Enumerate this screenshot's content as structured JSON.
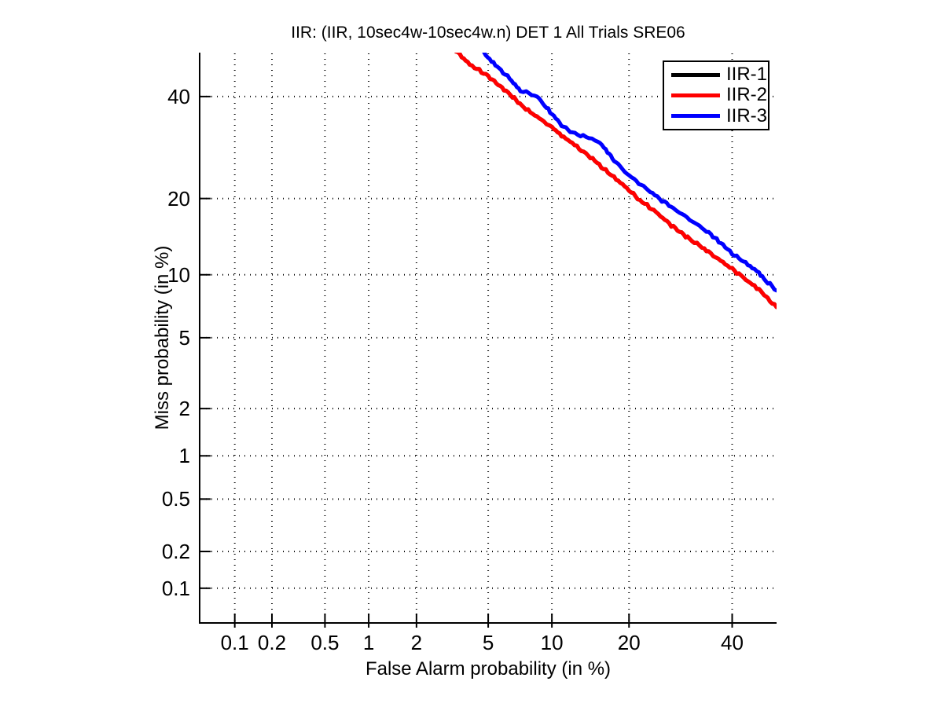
{
  "figure": {
    "background": "#ffffff",
    "axis_color": "#000000"
  },
  "chart_data": {
    "type": "line",
    "subtype": "DET curve (normal-deviate / probit scale on both axes)",
    "title": "IIR: (IIR, 10sec4w-10sec4w.n) DET 1 All Trials SRE06",
    "xlabel": "False Alarm probability (in %)",
    "ylabel": "Miss probability (in %)",
    "xlim": [
      0.05,
      50
    ],
    "ylim": [
      0.05,
      50
    ],
    "xticks": [
      0.1,
      0.2,
      0.5,
      1,
      2,
      5,
      10,
      20,
      40
    ],
    "yticks": [
      0.1,
      0.2,
      0.5,
      1,
      2,
      5,
      10,
      20,
      40
    ],
    "xtick_labels": [
      "0.1",
      "0.2",
      "0.5",
      "1",
      "2",
      "5",
      "10",
      "20",
      "40"
    ],
    "ytick_labels": [
      "0.1",
      "0.2",
      "0.5",
      "1",
      "2",
      "5",
      "10",
      "20",
      "40"
    ],
    "grid": "dotted, black, at labeled ticks only",
    "box": "left and bottom axes only (no top/right border)",
    "legend": {
      "position": "top-right",
      "entries": [
        {
          "label": "IIR-1",
          "color": "#000000"
        },
        {
          "label": "IIR-2",
          "color": "#ff0000"
        },
        {
          "label": "IIR-3",
          "color": "#0000ff"
        }
      ]
    },
    "series": [
      {
        "name": "IIR-1",
        "color": "#000000",
        "note": "coincident with IIR-2 and completely hidden beneath it",
        "points": [
          [
            3.1,
            52.5
          ],
          [
            3.45,
            50
          ],
          [
            4.0,
            47.3
          ],
          [
            4.5,
            45.9
          ],
          [
            5.0,
            44.6
          ],
          [
            5.5,
            43.0
          ],
          [
            6.0,
            41.6
          ],
          [
            6.6,
            40.0
          ],
          [
            7.3,
            38.0
          ],
          [
            8.0,
            36.6
          ],
          [
            9.0,
            34.9
          ],
          [
            10,
            33.4
          ],
          [
            11,
            31.6
          ],
          [
            12.2,
            30.1
          ],
          [
            13,
            29.0
          ],
          [
            14.7,
            27.0
          ],
          [
            16.5,
            24.8
          ],
          [
            18,
            23.3
          ],
          [
            20,
            21.4
          ],
          [
            21.4,
            20.0
          ],
          [
            23,
            18.9
          ],
          [
            25,
            17.6
          ],
          [
            27,
            16.2
          ],
          [
            29,
            15.1
          ],
          [
            31,
            14.1
          ],
          [
            33.5,
            13.1
          ],
          [
            35.4,
            12.3
          ],
          [
            37.5,
            11.5
          ],
          [
            40,
            10.6
          ],
          [
            42,
            9.9
          ],
          [
            44,
            9.2
          ],
          [
            46,
            8.6
          ],
          [
            48,
            7.8
          ],
          [
            50,
            7.1
          ]
        ]
      },
      {
        "name": "IIR-2",
        "color": "#ff0000",
        "points": [
          [
            3.1,
            52.5
          ],
          [
            3.45,
            50
          ],
          [
            4.0,
            47.3
          ],
          [
            4.5,
            45.9
          ],
          [
            5.0,
            44.6
          ],
          [
            5.5,
            43.0
          ],
          [
            6.0,
            41.6
          ],
          [
            6.6,
            40.0
          ],
          [
            7.3,
            38.0
          ],
          [
            8.0,
            36.6
          ],
          [
            9.0,
            34.9
          ],
          [
            10,
            33.4
          ],
          [
            11,
            31.6
          ],
          [
            12.2,
            30.1
          ],
          [
            13,
            29.0
          ],
          [
            14.7,
            27.0
          ],
          [
            16.5,
            24.8
          ],
          [
            18,
            23.3
          ],
          [
            20,
            21.4
          ],
          [
            21.4,
            20.0
          ],
          [
            23,
            18.9
          ],
          [
            25,
            17.6
          ],
          [
            27,
            16.2
          ],
          [
            29,
            15.1
          ],
          [
            31,
            14.1
          ],
          [
            33.5,
            13.1
          ],
          [
            35.4,
            12.3
          ],
          [
            37.5,
            11.5
          ],
          [
            40,
            10.6
          ],
          [
            42,
            9.9
          ],
          [
            44,
            9.2
          ],
          [
            46,
            8.6
          ],
          [
            48,
            7.8
          ],
          [
            50,
            7.1
          ]
        ]
      },
      {
        "name": "IIR-3",
        "color": "#0000ff",
        "points": [
          [
            4.4,
            52.5
          ],
          [
            4.75,
            50
          ],
          [
            5.2,
            48.0
          ],
          [
            5.8,
            46.0
          ],
          [
            6.4,
            44.0
          ],
          [
            7.2,
            41.3
          ],
          [
            7.9,
            40.7
          ],
          [
            8.6,
            40.0
          ],
          [
            9.3,
            38.0
          ],
          [
            10,
            36.2
          ],
          [
            11,
            33.8
          ],
          [
            12.2,
            32.2
          ],
          [
            13.5,
            31.5
          ],
          [
            15.4,
            30.5
          ],
          [
            16.5,
            28.8
          ],
          [
            17.7,
            26.7
          ],
          [
            20,
            23.9
          ],
          [
            22,
            22.3
          ],
          [
            25.2,
            20.0
          ],
          [
            27,
            18.9
          ],
          [
            29,
            17.8
          ],
          [
            31,
            16.8
          ],
          [
            33.5,
            15.6
          ],
          [
            35.4,
            14.7
          ],
          [
            37.5,
            13.6
          ],
          [
            40,
            12.3
          ],
          [
            42,
            11.6
          ],
          [
            44,
            10.9
          ],
          [
            46,
            10.2
          ],
          [
            47.5,
            9.4
          ],
          [
            49,
            8.9
          ],
          [
            50,
            8.5
          ]
        ]
      }
    ]
  }
}
